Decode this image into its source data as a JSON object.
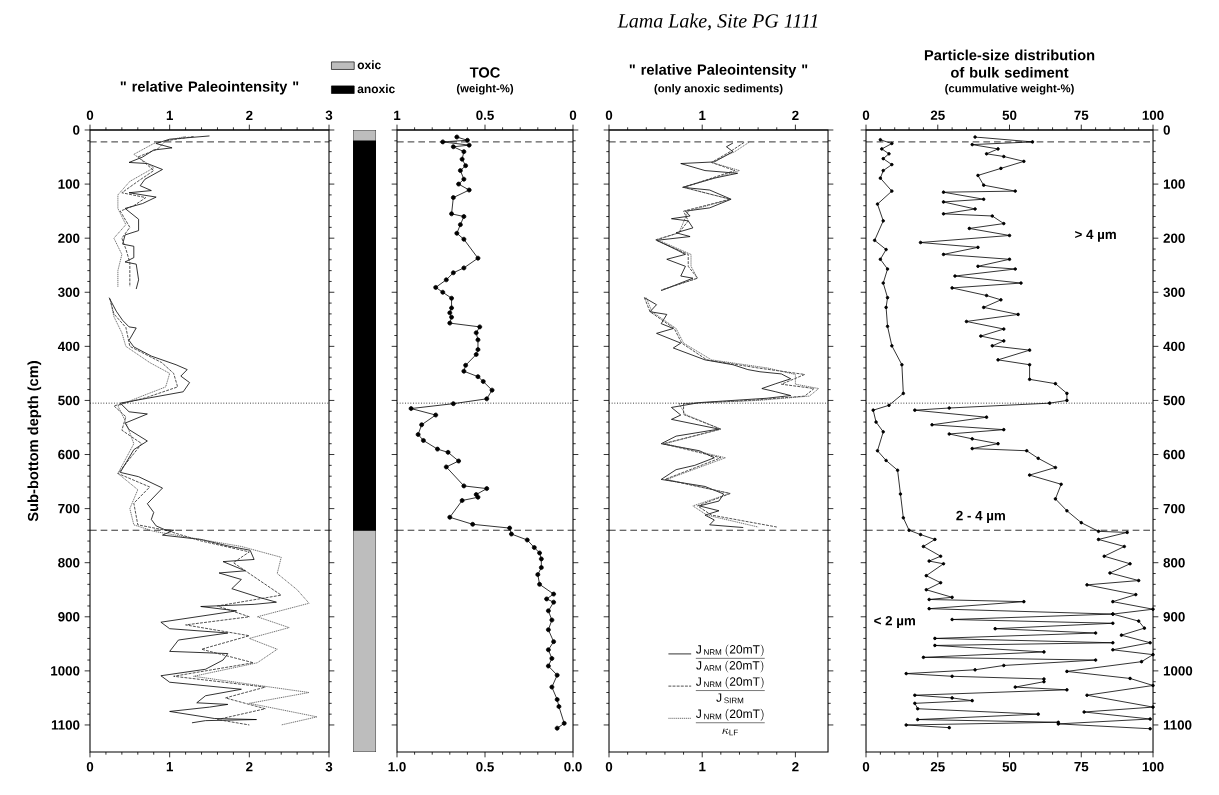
{
  "chart_data": [
    {
      "type": "line",
      "orientation": "horizontal",
      "title": "\" relative Paleointensity \"",
      "ylabel": "Sub-bottom depth (cm)",
      "xlim": [
        0,
        3
      ],
      "xticks": [
        0,
        1,
        2,
        3
      ],
      "x2lim": [
        0,
        3
      ],
      "x2ticks": [
        0,
        1,
        2,
        3
      ],
      "ylim": [
        1150,
        0
      ],
      "yticks": [
        0,
        100,
        200,
        300,
        400,
        500,
        600,
        700,
        800,
        900,
        1000,
        1100
      ],
      "ref_lines": [
        {
          "axis": "y",
          "value": 22,
          "line_style": "dashed"
        },
        {
          "axis": "y",
          "value": 505,
          "line_style": "dotted"
        },
        {
          "axis": "y",
          "value": 740,
          "line_style": "dashed"
        }
      ],
      "series": [
        {
          "color": "#000000",
          "line_style": "solid",
          "x": [
            11,
            17,
            25,
            33,
            37,
            50,
            60,
            62,
            73,
            91,
            103,
            112,
            116,
            124,
            136,
            145,
            165,
            186,
            194,
            211,
            215,
            236,
            244,
            248,
            277,
            294,
            300,
            310,
            335,
            352,
            364,
            366,
            389,
            401,
            418,
            434,
            443,
            455,
            467,
            484,
            496,
            505,
            521,
            525,
            542,
            554,
            575,
            591,
            633,
            641,
            662,
            691,
            707,
            720,
            732,
            739,
            740,
            749,
            757,
            769,
            777,
            794,
            798,
            815,
            819,
            831,
            848,
            864,
            873,
            877,
            881,
            889,
            910,
            922,
            930,
            943,
            964,
            968,
            980,
            997,
            1009,
            1021,
            1034,
            1046,
            1059,
            1062,
            1067,
            1075,
            1088,
            1090,
            1092,
            1096
          ],
          "values": [
            1.5,
            1.0,
            0.83,
            1.03,
            0.8,
            0.66,
            0.49,
            0.72,
            0.91,
            0.69,
            0.63,
            0.77,
            0.49,
            0.83,
            0.66,
            0.44,
            0.61,
            0.61,
            0.44,
            0.41,
            0.55,
            0.55,
            0.44,
            0.58,
            0.61,
            0.58,
            null,
            0.24,
            0.33,
            0.41,
            0.49,
            0.58,
            0.49,
            0.55,
            0.77,
            1.08,
            1.22,
            1.14,
            1.25,
            1.17,
            0.72,
            0.38,
            0.49,
            0.72,
            0.44,
            0.49,
            0.72,
            0.55,
            0.38,
            0.61,
            0.91,
            0.72,
            0.8,
            0.77,
            0.83,
            0.94,
            1.05,
            0.91,
            1.39,
            1.73,
            2.01,
            2.06,
            1.67,
            1.95,
            1.62,
            1.9,
            1.78,
            2.12,
            2.34,
            2.06,
            1.39,
            1.84,
            0.89,
            1.0,
            1.73,
            1.11,
            1.0,
            1.73,
            1.67,
            1.45,
            0.89,
            1.0,
            1.9,
            1.45,
            1.34,
            1.73,
            1.5,
            1.0,
            1.56,
            2.09,
            1.45,
            1.28
          ]
        },
        {
          "color": "#262626",
          "line_style": "dashed",
          "x": [
            12,
            20,
            35,
            50,
            62,
            75,
            95,
            116,
            125,
            140,
            150,
            180,
            200,
            220,
            245,
            260,
            290,
            300,
            312,
            340,
            365,
            400,
            430,
            450,
            475,
            495,
            510,
            530,
            555,
            580,
            635,
            660,
            690,
            730,
            740,
            760,
            780,
            800,
            830,
            860,
            880,
            900,
            915,
            935,
            960,
            985,
            1010,
            1030,
            1050,
            1070,
            1090,
            1100
          ],
          "values": [
            1.3,
            0.95,
            0.85,
            0.6,
            0.7,
            0.8,
            0.6,
            0.4,
            0.7,
            0.55,
            0.38,
            0.5,
            0.4,
            0.45,
            0.5,
            0.5,
            0.5,
            null,
            0.25,
            0.3,
            0.45,
            0.5,
            0.9,
            1.05,
            1.1,
            0.7,
            0.3,
            0.45,
            0.4,
            0.65,
            0.35,
            0.75,
            0.55,
            0.6,
            0.95,
            1.4,
            2.0,
            1.8,
            2.1,
            2.4,
            1.6,
            2.0,
            1.2,
            2.0,
            1.4,
            2.05,
            1.05,
            2.2,
            1.7,
            2.2,
            1.6,
            2.0
          ]
        },
        {
          "color": "#4d4d4d",
          "line_style": "dotted",
          "x": [
            12,
            25,
            45,
            70,
            95,
            120,
            145,
            175,
            200,
            230,
            260,
            290,
            300,
            312,
            345,
            375,
            400,
            430,
            450,
            475,
            495,
            510,
            540,
            580,
            635,
            665,
            700,
            730,
            742,
            770,
            790,
            820,
            850,
            875,
            900,
            920,
            940,
            960,
            985,
            1010,
            1040,
            1060,
            1085,
            1100
          ],
          "values": [
            1.2,
            0.8,
            0.55,
            0.8,
            0.5,
            0.35,
            0.35,
            0.45,
            0.3,
            0.4,
            0.35,
            0.35,
            null,
            0.25,
            0.3,
            0.4,
            0.45,
            0.75,
            1.0,
            0.95,
            0.6,
            0.35,
            0.45,
            0.55,
            0.35,
            0.6,
            0.5,
            0.55,
            0.8,
            1.9,
            2.4,
            2.35,
            2.6,
            2.75,
            2.1,
            2.5,
            2.0,
            2.35,
            2.1,
            1.3,
            2.75,
            2.0,
            2.85,
            2.4
          ]
        }
      ]
    },
    {
      "type": "bar",
      "stacked": true,
      "categories": [
        null
      ],
      "ylim": [
        1150,
        0
      ],
      "tick_labels": false,
      "legend": "top",
      "series": [
        {
          "name": "oxic",
          "color": "#bdbdbd",
          "values": [
            20
          ]
        },
        {
          "name": "anoxic",
          "color": "#000000",
          "values": [
            720
          ]
        },
        {
          "color": "#bdbdbd",
          "values": [
            410
          ]
        }
      ]
    },
    {
      "type": "line",
      "orientation": "horizontal",
      "title": "TOC",
      "subtitle": "(weight-%)",
      "marker": "circle",
      "tick_labels": "x",
      "xlim": [
        1,
        0
      ],
      "xticks": [
        {
          "value": 1,
          "label": "1.0"
        },
        {
          "value": 0.5,
          "label": "0.5"
        },
        {
          "value": 0,
          "label": "0.0"
        }
      ],
      "x2lim": [
        1,
        0
      ],
      "x2ticks": [
        1,
        0.5,
        0
      ],
      "ylim": [
        1150,
        0
      ],
      "yticks": [
        0,
        100,
        200,
        300,
        400,
        500,
        600,
        700,
        800,
        900,
        1000,
        1100
      ],
      "ref_lines": [
        {
          "axis": "y",
          "value": 22,
          "line_style": "dashed"
        },
        {
          "axis": "y",
          "value": 505,
          "line_style": "dotted"
        },
        {
          "axis": "y",
          "value": 740,
          "line_style": "dashed"
        }
      ],
      "series": [
        {
          "color": "#000000",
          "x": [
            13,
            19,
            22,
            28,
            31,
            40,
            54,
            66,
            75,
            91,
            100,
            111,
            125,
            155,
            160,
            175,
            191,
            202,
            237,
            255,
            264,
            277,
            291,
            300,
            311,
            329,
            338,
            346,
            357,
            364,
            375,
            388,
            406,
            415,
            435,
            446,
            456,
            465,
            481,
            497,
            506,
            515,
            527,
            545,
            563,
            574,
            590,
            596,
            612,
            623,
            658,
            663,
            674,
            679,
            685,
            716,
            729,
            736,
            747,
            758,
            772,
            782,
            793,
            809,
            822,
            840,
            858,
            867,
            873,
            889,
            906,
            924,
            946,
            961,
            977,
            991,
            1008,
            1030,
            1053,
            1066,
            1097,
            1106
          ],
          "values": [
            0.66,
            0.6,
            0.74,
            0.59,
            0.68,
            0.62,
            0.63,
            0.61,
            0.64,
            0.62,
            0.65,
            0.59,
            0.68,
            0.69,
            0.62,
            0.64,
            0.66,
            0.62,
            0.54,
            0.62,
            0.68,
            0.72,
            0.78,
            0.74,
            0.69,
            0.69,
            0.7,
            0.69,
            0.7,
            0.53,
            0.55,
            0.54,
            0.54,
            0.55,
            0.61,
            0.62,
            0.54,
            0.51,
            0.46,
            0.49,
            0.68,
            0.92,
            0.78,
            0.86,
            0.88,
            0.85,
            0.77,
            0.71,
            0.65,
            0.72,
            0.62,
            0.49,
            0.55,
            0.54,
            0.63,
            0.7,
            0.57,
            0.36,
            0.35,
            0.26,
            0.22,
            0.19,
            0.18,
            0.18,
            0.2,
            0.19,
            0.11,
            0.15,
            0.11,
            0.14,
            0.12,
            0.14,
            0.11,
            0.14,
            0.12,
            0.14,
            0.09,
            0.12,
            0.09,
            0.08,
            0.05,
            0.09
          ]
        }
      ]
    },
    {
      "type": "line",
      "orientation": "horizontal",
      "title": "\" relative Paleointensity \"",
      "subtitle": "(only anoxic sediments)",
      "tick_labels": "x",
      "legend": "bottom",
      "annotations": [
        "*Lama Lake, Site PG 1111*"
      ],
      "xlim": [
        0,
        2.35
      ],
      "xticks": [
        0,
        1,
        2
      ],
      "x2lim": [
        0,
        2.35
      ],
      "x2ticks": [
        0,
        1,
        2
      ],
      "ylim": [
        1150,
        0
      ],
      "yticks": [
        0,
        100,
        200,
        300,
        400,
        500,
        600,
        700,
        800,
        900,
        1000,
        1100
      ],
      "ref_lines": [
        {
          "axis": "y",
          "value": 22,
          "line_style": "dashed"
        },
        {
          "axis": "y",
          "value": 505,
          "line_style": "dotted"
        },
        {
          "axis": "y",
          "value": 740,
          "line_style": "dashed"
        }
      ],
      "series": [
        {
          "name": "\\frac{\\mathrm{J}_{\\,\\mathrm{NRM}}\\,\\mathrm{(20mT)}}{\\mathrm{J}_{\\,\\mathrm{ARM}}\\,\\mathrm{(20mT)}}",
          "color": "#000000",
          "line_style": "solid",
          "x": [
            24,
            31,
            40,
            59,
            62,
            75,
            80,
            89,
            106,
            111,
            128,
            144,
            150,
            159,
            164,
            168,
            181,
            190,
            197,
            204,
            221,
            230,
            239,
            252,
            270,
            274,
            297,
            300,
            310,
            323,
            336,
            341,
            358,
            367,
            376,
            394,
            403,
            425,
            434,
            443,
            447,
            451,
            460,
            469,
            478,
            484,
            491,
            496,
            500,
            504,
            513,
            527,
            535,
            553,
            566,
            580,
            593,
            606,
            620,
            628,
            646,
            659,
            673,
            686,
            695,
            704,
            712,
            721,
            730,
            735
          ],
          "values": [
            1.33,
            1.26,
            1.33,
            1.13,
            0.77,
            1.03,
            1.38,
            1.13,
            0.79,
            1.08,
            1.31,
            1.08,
            0.82,
            0.87,
            0.67,
            0.85,
            0.9,
            0.72,
            0.87,
            0.51,
            0.72,
            0.82,
            0.62,
            0.82,
            0.77,
            0.9,
            0.56,
            null,
            0.38,
            0.51,
            0.44,
            0.62,
            0.56,
            0.69,
            0.51,
            0.77,
            0.69,
            1.03,
            1.33,
            1.49,
            1.62,
            1.85,
            1.95,
            1.79,
            1.64,
            1.79,
            1.95,
            1.69,
            1.33,
            0.97,
            0.67,
            0.77,
            0.67,
            1.18,
            0.72,
            0.56,
            0.97,
            1.13,
            0.92,
            0.72,
            0.56,
            1.03,
            1.23,
            1.18,
            0.97,
            1.18,
            1.03,
            1.13,
            1.08,
            1.44
          ]
        },
        {
          "name": "\\frac{\\mathrm{J}_{\\,\\mathrm{NRM}}\\,\\mathrm{(20mT)}}{\\mathrm{J}_{\\,\\mathrm{SIRM}}}",
          "color": "#262626",
          "line_style": "dashed",
          "x": [
            23,
            40,
            60,
            75,
            106,
            128,
            150,
            168,
            190,
            203,
            230,
            252,
            274,
            296,
            300,
            310,
            336,
            367,
            394,
            425,
            440,
            452,
            470,
            478,
            492,
            500,
            506,
            526,
            553,
            580,
            606,
            646,
            672,
            695,
            712,
            734
          ],
          "values": [
            1.45,
            1.3,
            1.1,
            1.35,
            0.8,
            1.3,
            0.8,
            0.85,
            0.75,
            0.5,
            0.85,
            0.85,
            0.95,
            0.56,
            null,
            0.38,
            0.44,
            0.7,
            0.78,
            1.05,
            1.6,
            2.1,
            1.85,
            2.2,
            2.1,
            1.5,
            0.8,
            0.8,
            1.2,
            0.58,
            1.2,
            0.6,
            1.3,
            0.95,
            1.1,
            1.8
          ]
        },
        {
          "name": "\\frac{\\mathrm{J}_{\\,\\mathrm{NRM}}\\,\\mathrm{(20mT)}}{\\kappa_{\\mathrm{LF}}}",
          "color": "#4d4d4d",
          "line_style": "dotted",
          "x": [
            23,
            40,
            60,
            75,
            106,
            128,
            150,
            190,
            203,
            230,
            252,
            274,
            296,
            300,
            310,
            336,
            367,
            394,
            425,
            440,
            452,
            470,
            478,
            492,
            500,
            506,
            526,
            553,
            580,
            606,
            646,
            672,
            695,
            712,
            734
          ],
          "values": [
            1.5,
            1.35,
            1.1,
            1.4,
            0.8,
            1.3,
            0.85,
            0.75,
            0.52,
            0.88,
            0.88,
            0.95,
            0.56,
            null,
            0.4,
            0.46,
            0.72,
            0.8,
            1.1,
            1.7,
            2.0,
            2.0,
            2.25,
            2.15,
            1.6,
            0.75,
            0.82,
            1.2,
            0.6,
            1.25,
            0.62,
            1.3,
            0.9,
            1.05,
            1.6
          ]
        }
      ]
    },
    {
      "type": "line",
      "orientation": "horizontal",
      "title": "Particle-size distribution of bulk sediment",
      "subtitle": "(cummulative weight-%)",
      "marker": "circle",
      "annotations": [
        "> 4 µm",
        "2 - 4 µm",
        "< 2 µm"
      ],
      "xlim": [
        0,
        100
      ],
      "xticks": [
        0,
        25,
        50,
        75,
        100
      ],
      "x2lim": [
        0,
        100
      ],
      "x2ticks": [
        0,
        25,
        50,
        75,
        100
      ],
      "ylim": [
        1150,
        0
      ],
      "yticks": [
        0,
        100,
        200,
        300,
        400,
        500,
        600,
        700,
        800,
        900,
        1000,
        1100
      ],
      "ref_lines": [
        {
          "axis": "y",
          "value": 22,
          "line_style": "dashed"
        },
        {
          "axis": "y",
          "value": 505,
          "line_style": "dotted"
        },
        {
          "axis": "y",
          "value": 740,
          "line_style": "dashed"
        }
      ],
      "series": [
        {
          "color": "#000000",
          "x": [
            18,
            25,
            35,
            44,
            53,
            64,
            75,
            89,
            113,
            137,
            168,
            204,
            221,
            239,
            257,
            283,
            310,
            328,
            363,
            399,
            434,
            487,
            509,
            518,
            540,
            558,
            593,
            611,
            629,
            673,
            717,
            740,
            748,
            757,
            770,
            788,
            797,
            802,
            824,
            837,
            850,
            864,
            868,
            872,
            885,
            895,
            905,
            912,
            922,
            930,
            940,
            948,
            953,
            965,
            975,
            980,
            990,
            998,
            1005,
            1010,
            1015,
            1020,
            1030,
            1035,
            1045,
            1050,
            1055,
            1060,
            1070,
            1080,
            1090,
            1095,
            1100,
            1105
          ],
          "values": [
            5,
            9,
            5.5,
            8,
            6,
            9,
            6,
            5,
            9,
            4,
            6,
            3,
            7,
            5,
            7.5,
            6,
            7.5,
            7,
            7.5,
            9,
            12.5,
            13,
            8,
            2.5,
            3.5,
            6,
            4,
            7,
            11,
            12,
            13,
            15,
            19,
            24,
            20,
            26,
            22,
            27,
            21,
            26,
            21,
            30,
            22,
            55,
            22,
            86,
            30,
            86,
            45,
            80,
            24,
            86,
            24,
            62,
            20,
            80,
            48,
            38,
            14,
            30,
            62,
            62,
            52,
            70,
            17,
            30,
            37,
            17,
            18,
            60,
            18,
            67,
            14,
            29
          ]
        },
        {
          "color": "#000000",
          "x": [
            13,
            22,
            27,
            35,
            44,
            49,
            58,
            71,
            84,
            102,
            113,
            115,
            128,
            133,
            146,
            155,
            159,
            173,
            182,
            195,
            208,
            217,
            230,
            239,
            252,
            257,
            270,
            283,
            292,
            306,
            314,
            328,
            341,
            354,
            368,
            381,
            390,
            399,
            407,
            425,
            434,
            461,
            469,
            487,
            500,
            505,
            514,
            518,
            531,
            545,
            554,
            562,
            571,
            580,
            589,
            593,
            607,
            624,
            638,
            655,
            682,
            704,
            726,
            742,
            744,
            757,
            770,
            788,
            802,
            819,
            833,
            841,
            859,
            872,
            886,
            895,
            908,
            921,
            934,
            948,
            961,
            970,
            983,
            1001,
            1014,
            1027,
            1045,
            1067,
            1076,
            1089,
            1098,
            1107
          ],
          "values": [
            38,
            58,
            37,
            46,
            42,
            48,
            55,
            47,
            39,
            41,
            52,
            27,
            41,
            27,
            38,
            27,
            44,
            48,
            36,
            50,
            19,
            39,
            27,
            50,
            39,
            52,
            31,
            54,
            30,
            42,
            47,
            41,
            53,
            35,
            48,
            40,
            48,
            44,
            57,
            46,
            57,
            57,
            66,
            70,
            70,
            64,
            29,
            17,
            42,
            23,
            48,
            29,
            37,
            46,
            37,
            56,
            60,
            66,
            57,
            68,
            66,
            70,
            75,
            81,
            91,
            81,
            90,
            83,
            92,
            85,
            95,
            77,
            94,
            86,
            100,
            86,
            95,
            97,
            89,
            99,
            86,
            100,
            96,
            70,
            92,
            100,
            77,
            100,
            76,
            99,
            67,
            99
          ]
        }
      ]
    }
  ]
}
